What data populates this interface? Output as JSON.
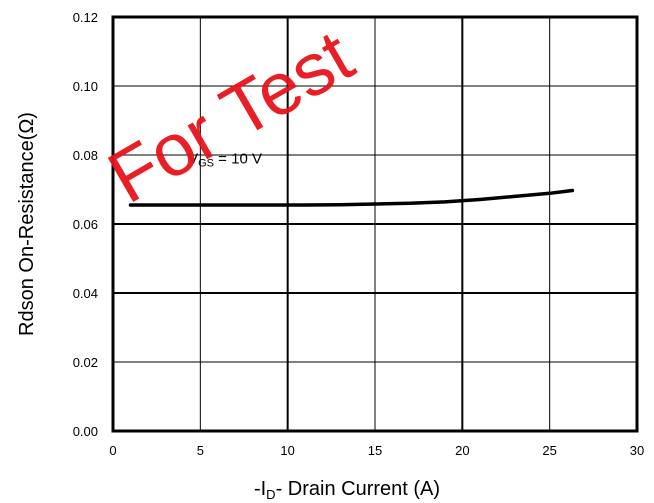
{
  "chart_data": {
    "type": "line",
    "title": "",
    "xlabel": {
      "prefix": "-I",
      "sub": "D",
      "suffix": "- Drain Current (A)"
    },
    "ylabel": "Rdson On-Resistance(Ω)",
    "xlim": [
      0,
      30
    ],
    "ylim": [
      0,
      0.12
    ],
    "x_ticks": [
      0,
      5,
      10,
      15,
      20,
      25,
      30
    ],
    "x_tick_labels": [
      "0",
      "5",
      "10",
      "15",
      "20",
      "25",
      "30"
    ],
    "y_ticks": [
      0,
      0.02,
      0.04,
      0.06,
      0.08,
      0.1,
      0.12
    ],
    "y_tick_labels": [
      "0.00",
      "0.02",
      "0.04",
      "0.06",
      "0.08",
      "0.10",
      "0.12"
    ],
    "grid": true,
    "annotation": {
      "prefix": "V",
      "sub": "GS",
      "suffix": " = 10 V",
      "x": 4.3,
      "y": 0.0775
    },
    "series": [
      {
        "x": [
          1,
          3,
          5,
          7,
          9,
          11,
          13,
          15,
          17,
          19,
          21,
          23,
          25,
          26.3
        ],
        "y": [
          0.0655,
          0.0655,
          0.0655,
          0.0655,
          0.0655,
          0.0655,
          0.0656,
          0.0658,
          0.066,
          0.0664,
          0.0671,
          0.068,
          0.0689,
          0.0697
        ]
      }
    ],
    "colors": {
      "line": "#000000",
      "grid": "#000000",
      "watermark": "#e8141c"
    },
    "watermark": "For Test"
  }
}
